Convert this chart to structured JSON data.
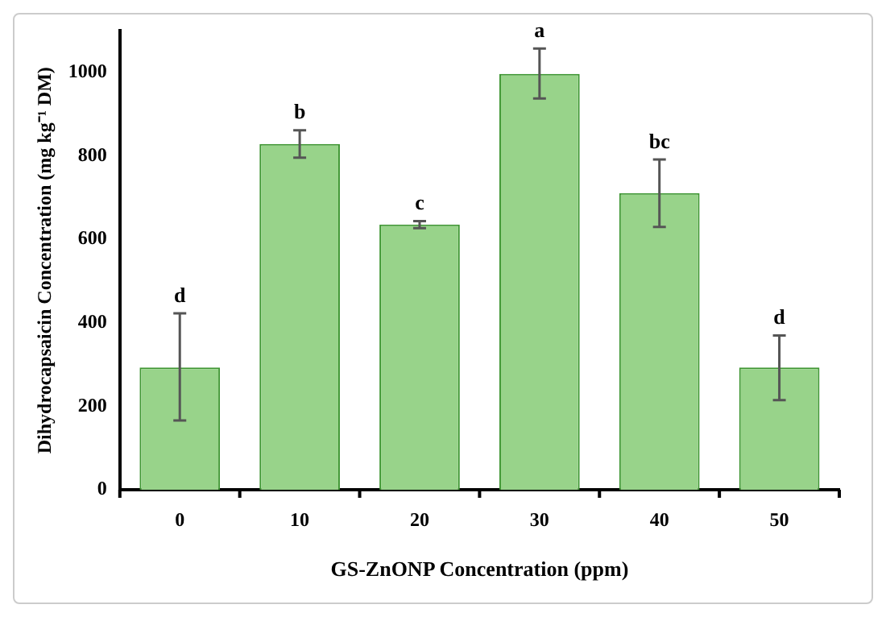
{
  "chart_data": {
    "type": "bar",
    "xlabel": "GS-ZnONP Concentration (ppm)",
    "ylabel": "Dihydrocapsaicin Concentration (mg kg⁻¹ DM)",
    "categories": [
      "0",
      "10",
      "20",
      "30",
      "40",
      "50"
    ],
    "values": [
      293,
      829,
      636,
      997,
      711,
      293
    ],
    "errors": [
      [
        166,
        423
      ],
      [
        796,
        862
      ],
      [
        627,
        644
      ],
      [
        938,
        1058
      ],
      [
        630,
        792
      ],
      [
        215,
        370
      ]
    ],
    "color": "#98d38a",
    "ylim": [
      0,
      1100
    ],
    "yticks": [
      0,
      200,
      400,
      600,
      800,
      1000
    ],
    "grid": false,
    "legend": false,
    "annotations": [
      {
        "text": "d",
        "x": "0",
        "y": 423
      },
      {
        "text": "b",
        "x": "10",
        "y": 862
      },
      {
        "text": "c",
        "x": "20",
        "y": 644
      },
      {
        "text": "a",
        "x": "30",
        "y": 1058
      },
      {
        "text": "bc",
        "x": "40",
        "y": 792
      },
      {
        "text": "d",
        "x": "50",
        "y": 370
      }
    ]
  }
}
